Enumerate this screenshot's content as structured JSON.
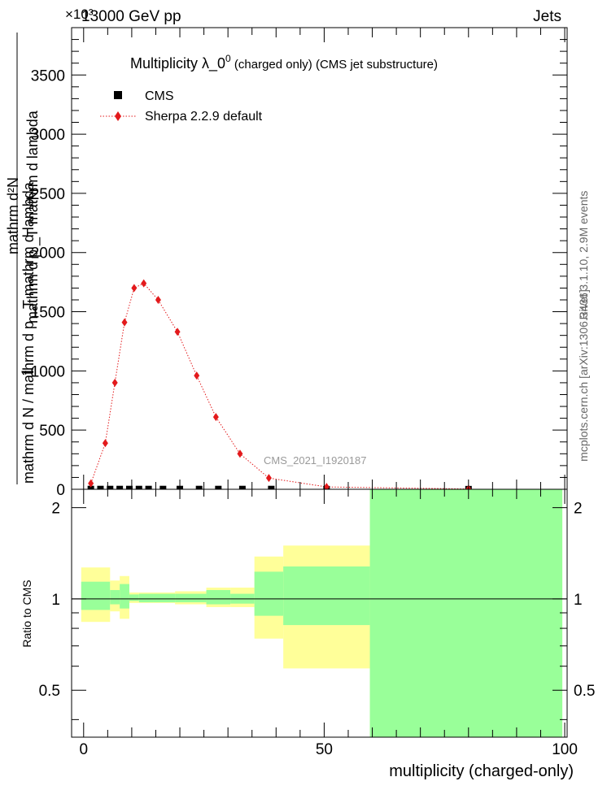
{
  "header": {
    "left": "13000 GeV pp",
    "right": "Jets",
    "exponent": "×10³"
  },
  "side_labels": {
    "rivet": "Rivet 3.1.10,  2.9M events",
    "mcplots": "mcplots.cern.ch [arXiv:1306.3436]"
  },
  "watermark": "CMS_2021_I1920187",
  "chart_data": [
    {
      "type": "scatter",
      "panel": "main",
      "title": "Multiplicity  λ_0⁰ (charged only) (CMS jet substructure)",
      "title_main": "Multiplicity  λ_0",
      "title_sup": "0",
      "title_rest": " (charged only) (CMS jet substructure)",
      "ylabel_lines": [
        "1",
        "mathrm d N / mathrm d p  _T mathrm d lambda",
        "mathrm d²N",
        "mathrm d p  _T mathrm d lambda"
      ],
      "xlim": [
        -2.5,
        100.5
      ],
      "ylim": [
        0,
        3900
      ],
      "y_scale_factor": "x10^3",
      "yticks": [
        0,
        500,
        1000,
        1500,
        2000,
        2500,
        3000,
        3500
      ],
      "ytick_labels": [
        "0",
        "500",
        "1000",
        "1500",
        "2000",
        "2500",
        "3000",
        "3500"
      ],
      "legend": {
        "placement": "top-left",
        "entries": [
          "CMS",
          "Sherpa 2.2.9 default"
        ]
      },
      "series": [
        {
          "name": "CMS",
          "marker": "square",
          "color": "#000000",
          "x": [
            1.5,
            3.5,
            5.5,
            7.5,
            9.5,
            11.5,
            13.5,
            16.5,
            20,
            24,
            28,
            33,
            39,
            50.5,
            80
          ],
          "y": [
            2,
            2,
            2,
            2,
            2,
            2,
            2,
            2,
            2,
            2,
            2,
            2,
            2,
            1,
            1
          ]
        },
        {
          "name": "Sherpa 2.2.9 default",
          "marker": "diamond",
          "line": "dotted",
          "color": "#e31a1c",
          "x": [
            1.5,
            4.5,
            6.5,
            8.5,
            10.5,
            12.5,
            15.5,
            19.5,
            23.5,
            27.5,
            32.5,
            38.5,
            50.5,
            80
          ],
          "y": [
            50,
            390,
            900,
            1410,
            1700,
            1740,
            1600,
            1330,
            960,
            610,
            300,
            95,
            20,
            3
          ]
        }
      ]
    },
    {
      "type": "area",
      "panel": "ratio",
      "ylabel": "Ratio to CMS",
      "xlabel": "multiplicity (charged-only)",
      "xlim": [
        -2.5,
        100.5
      ],
      "ylim": [
        0.35,
        2.3
      ],
      "xticks": [
        0,
        50,
        100
      ],
      "xtick_labels": [
        "0",
        "50",
        "100"
      ],
      "yticks": [
        0.5,
        1,
        2
      ],
      "ytick_labels": [
        "0.5",
        "1",
        "2"
      ],
      "reference_line": 1,
      "bands": {
        "bin_edges": [
          -0.5,
          5.5,
          7.5,
          9.5,
          11.5,
          14.5,
          19,
          25.5,
          30.5,
          35.5,
          41.5,
          59.5,
          99.5
        ],
        "outer_color": "#ffff99",
        "inner_color": "#99ff99",
        "outer_low": [
          0.84,
          0.91,
          0.86,
          0.97,
          0.97,
          0.97,
          0.96,
          0.94,
          0.94,
          0.74,
          0.59,
          0.35
        ],
        "outer_high": [
          1.27,
          1.15,
          1.19,
          1.05,
          1.05,
          1.05,
          1.06,
          1.09,
          1.09,
          1.38,
          1.5,
          2.3
        ],
        "inner_low": [
          0.92,
          0.96,
          0.93,
          0.985,
          0.975,
          0.975,
          0.975,
          0.96,
          0.965,
          0.88,
          0.82,
          0.35
        ],
        "inner_high": [
          1.14,
          1.07,
          1.12,
          1.035,
          1.04,
          1.04,
          1.04,
          1.07,
          1.04,
          1.23,
          1.28,
          2.3
        ]
      }
    }
  ]
}
